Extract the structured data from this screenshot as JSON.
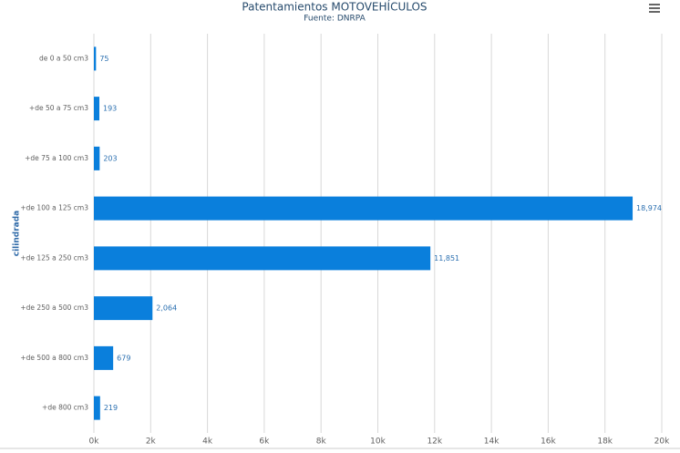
{
  "chart_data": {
    "type": "hbar",
    "title": "Patentamientos MOTOVEHÍCULOS",
    "subtitle": "Fuente: DNRPA",
    "y_label": "cilindrada",
    "categories": [
      "de 0 a 50 cm3",
      "+de 50 a 75 cm3",
      "+de 75 a 100 cm3",
      "+de 100 a 125 cm3",
      "+de 125 a 250 cm3",
      "+de 250 a 500 cm3",
      "+de 500 a 800 cm3",
      "+de 800 cm3"
    ],
    "values": [
      75,
      193,
      203,
      18974,
      11851,
      2064,
      679,
      219
    ],
    "value_labels": [
      "75",
      "193",
      "203",
      "18,974",
      "11,851",
      "2,064",
      "679",
      "219"
    ],
    "color": "#0a7fdc",
    "xlim": [
      0,
      20000
    ],
    "xticks": [
      {
        "value": 0,
        "label": "0k"
      },
      {
        "value": 2000,
        "label": "2k"
      },
      {
        "value": 4000,
        "label": "4k"
      },
      {
        "value": 6000,
        "label": "6k"
      },
      {
        "value": 8000,
        "label": "8k"
      },
      {
        "value": 10000,
        "label": "10k"
      },
      {
        "value": 12000,
        "label": "12k"
      },
      {
        "value": 14000,
        "label": "14k"
      },
      {
        "value": 16000,
        "label": "16k"
      },
      {
        "value": 18000,
        "label": "18k"
      },
      {
        "value": 20000,
        "label": "20k"
      }
    ],
    "grid": true
  }
}
